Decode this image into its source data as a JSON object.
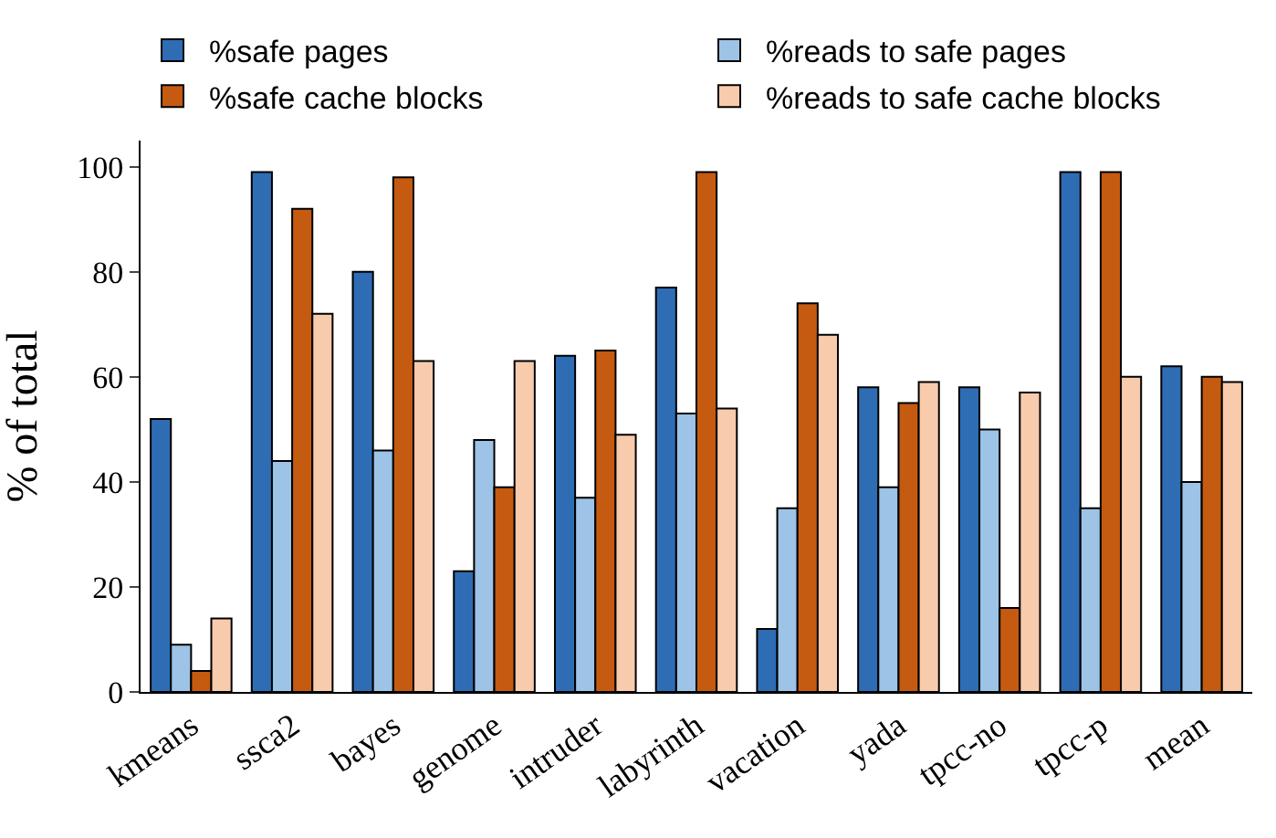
{
  "chart_data": {
    "type": "bar",
    "ylabel": "% of total",
    "categories": [
      "kmeans",
      "ssca2",
      "bayes",
      "genome",
      "intruder",
      "labyrinth",
      "vacation",
      "yada",
      "tpcc-no",
      "tpcc-p",
      "mean"
    ],
    "series": [
      {
        "name": "%safe pages",
        "color": "#2e6db4",
        "values": [
          52,
          99,
          80,
          23,
          64,
          77,
          12,
          58,
          58,
          99,
          62
        ]
      },
      {
        "name": "%reads to safe pages",
        "color": "#9dc3e6",
        "values": [
          9,
          44,
          46,
          48,
          37,
          53,
          35,
          39,
          50,
          35,
          40
        ]
      },
      {
        "name": "%safe cache blocks",
        "color": "#c55a11",
        "values": [
          4,
          92,
          98,
          39,
          65,
          99,
          74,
          55,
          16,
          99,
          60
        ]
      },
      {
        "name": "%reads to safe cache blocks",
        "color": "#f8cbad",
        "values": [
          14,
          72,
          63,
          63,
          49,
          54,
          68,
          59,
          57,
          60,
          59
        ]
      }
    ],
    "ylim": [
      0,
      105
    ],
    "yticks": [
      0,
      20,
      40,
      60,
      80,
      100
    ],
    "grid": false,
    "legend": "top"
  }
}
